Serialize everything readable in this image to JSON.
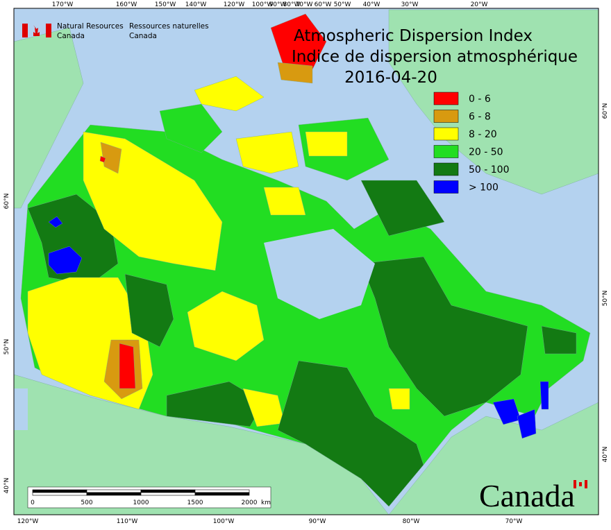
{
  "header": {
    "agency_en": [
      "Natural Resources",
      "Canada"
    ],
    "agency_fr": [
      "Ressources naturelles",
      "Canada"
    ]
  },
  "title": [
    "Atmospheric Dispersion Index",
    "Indice de dispersion atmosphérique",
    "2016-04-20"
  ],
  "legend": [
    {
      "label": "0 - 6",
      "color": "#ff0000"
    },
    {
      "label": "6 - 8",
      "color": "#d89a10"
    },
    {
      "label": "8 - 20",
      "color": "#ffff00"
    },
    {
      "label": "20 - 50",
      "color": "#22dd22"
    },
    {
      "label": "50 - 100",
      "color": "#137a13"
    },
    {
      "label": "> 100",
      "color": "#0000ff"
    }
  ],
  "graticule": {
    "top": [
      "170°W",
      "160°W",
      "150°W",
      "140°W",
      "120°W",
      "100°W",
      "90°W",
      "80°W",
      "70°W",
      "60°W",
      "50°W",
      "40°W",
      "30°W",
      "20°W"
    ],
    "bottom": [
      "120°W",
      "110°W",
      "100°W",
      "90°W",
      "80°W",
      "70°W"
    ],
    "left": [
      "60°N",
      "50°N",
      "40°N"
    ],
    "right": [
      "60°N",
      "50°N",
      "40°N"
    ]
  },
  "scale_bar": {
    "labels": [
      "0",
      "500",
      "1000",
      "1500",
      "2000"
    ],
    "unit": "km"
  },
  "wordmark": "Canada"
}
